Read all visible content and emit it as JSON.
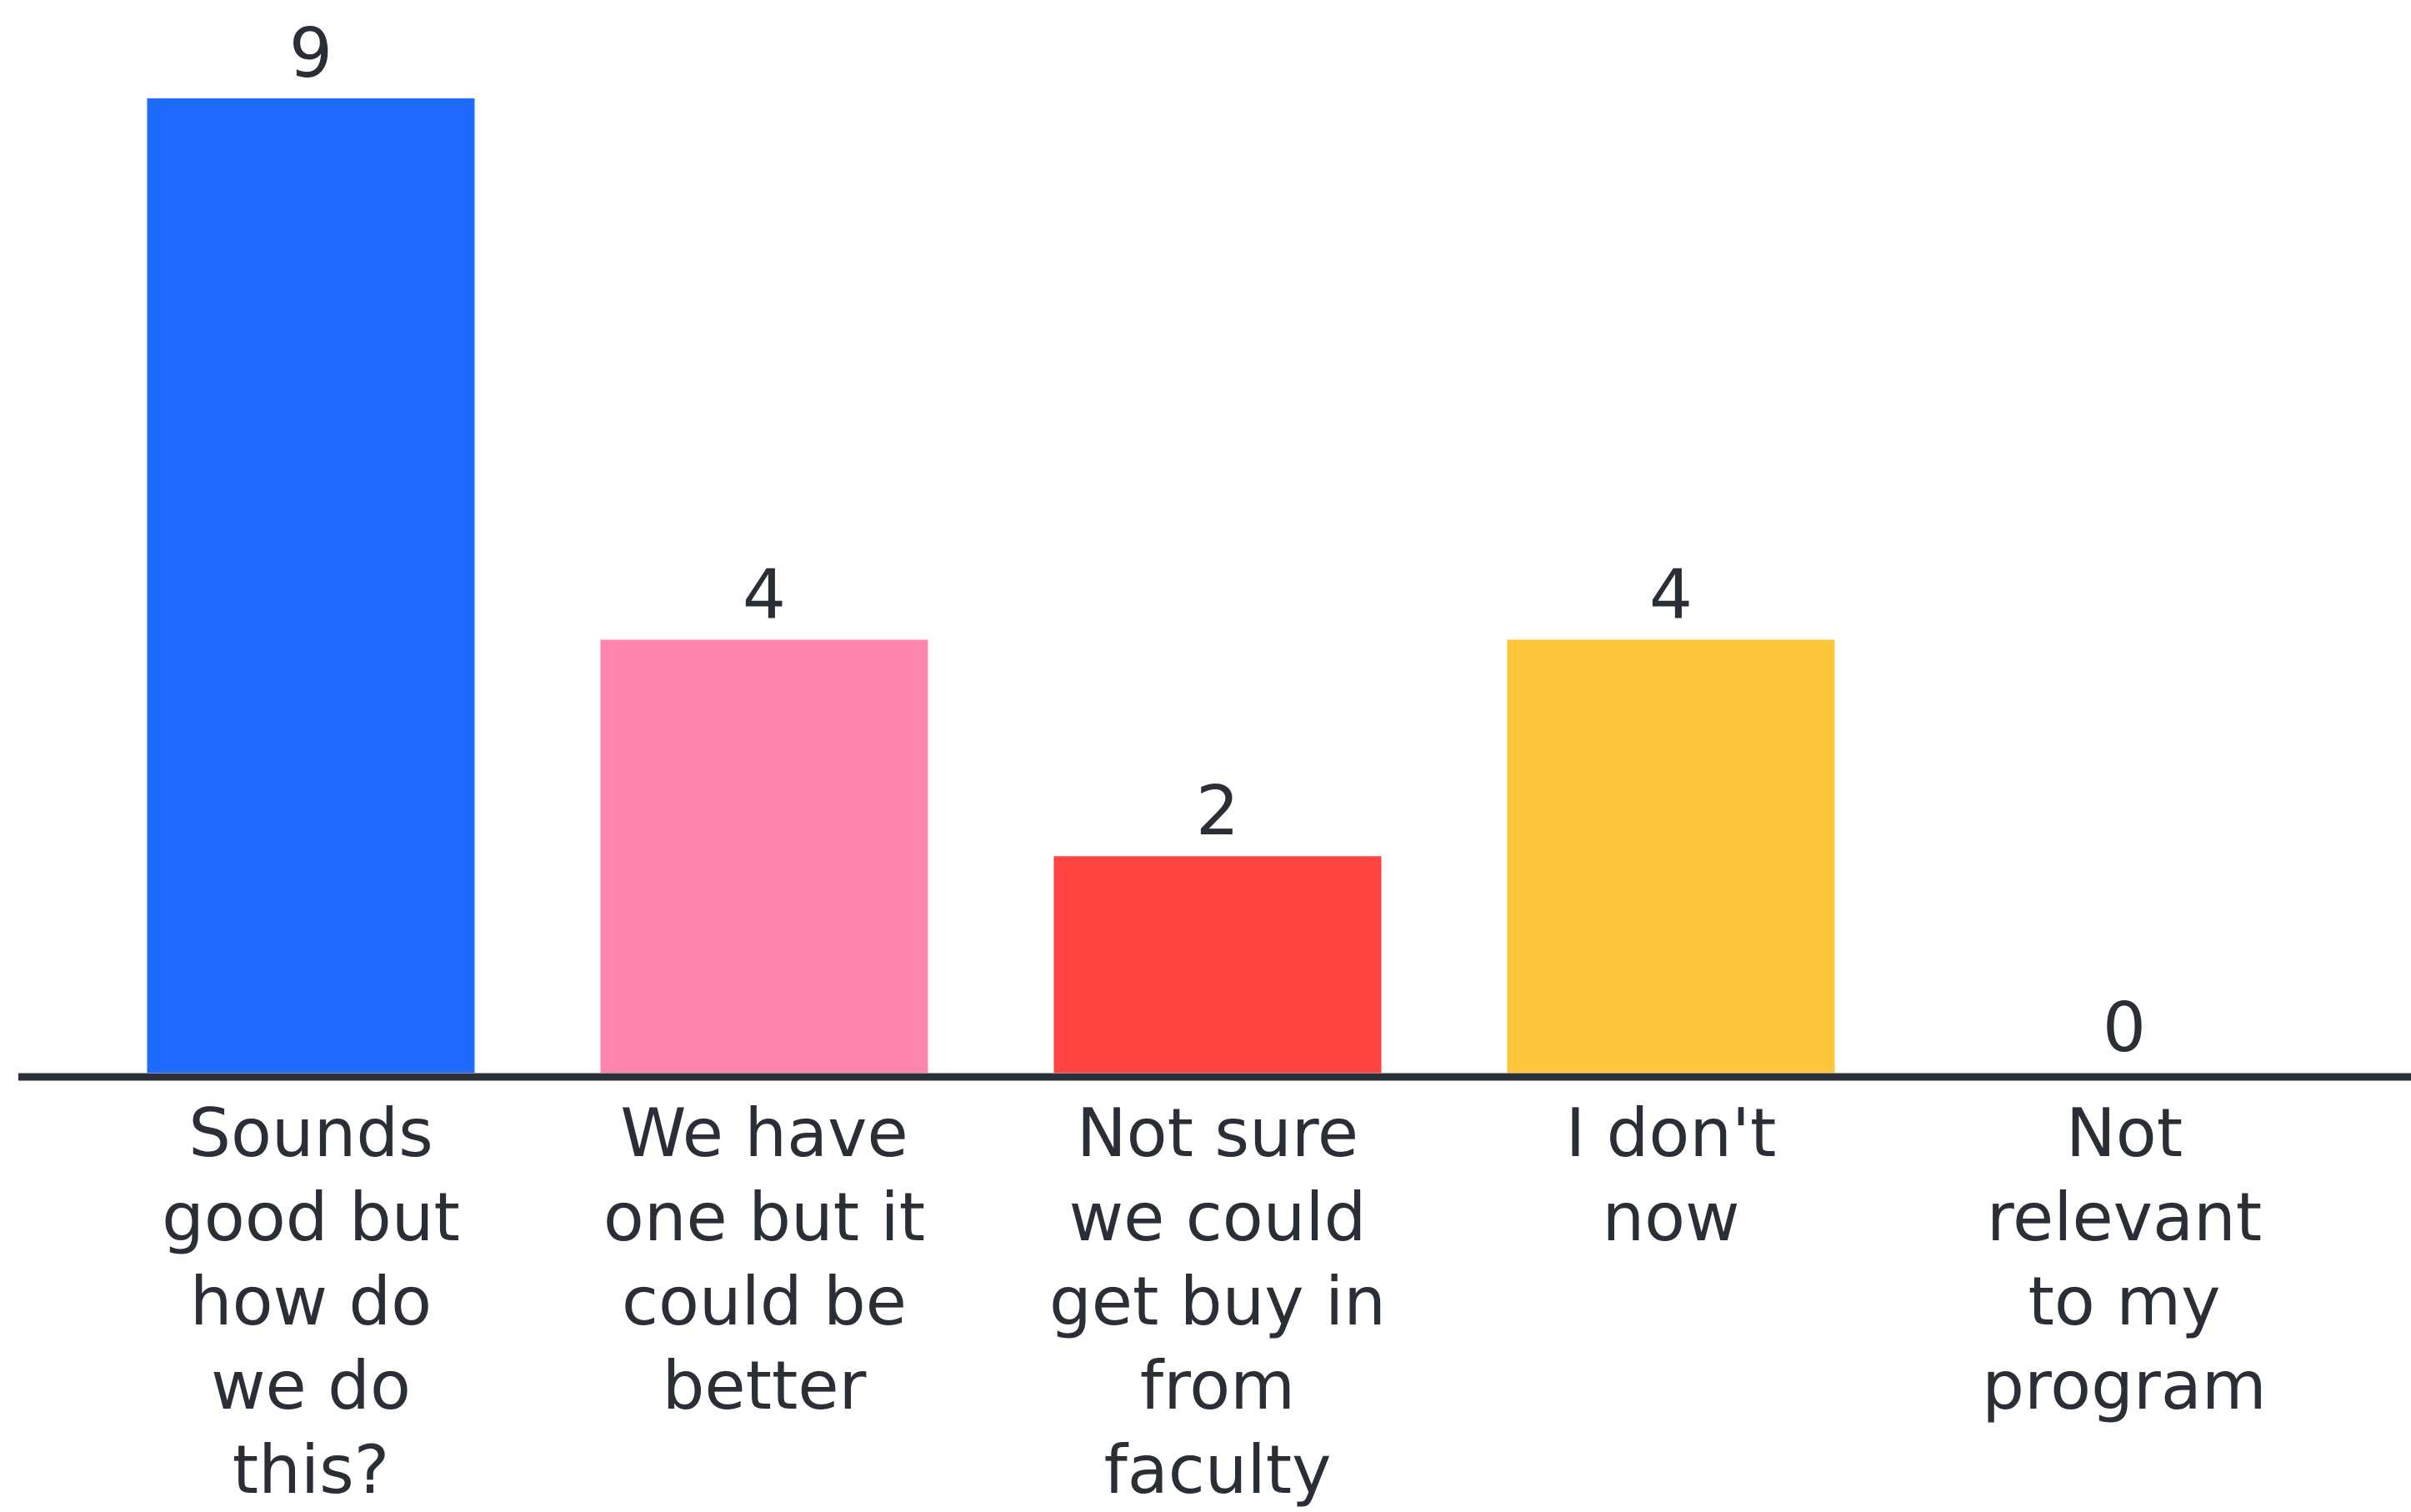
{
  "chart_data": {
    "type": "bar",
    "title": "",
    "xlabel": "",
    "ylabel": "",
    "ylim": [
      0,
      9
    ],
    "grid": false,
    "legend": "none",
    "categories": [
      [
        "Sounds",
        "good but",
        "how do",
        "we do",
        "this?"
      ],
      [
        "We have",
        "one but it",
        "could be",
        "better"
      ],
      [
        "Not sure",
        "we could",
        "get buy in",
        "from",
        "faculty"
      ],
      [
        "I don't",
        "now"
      ],
      [
        "Not",
        "relevant",
        "to my",
        "program"
      ]
    ],
    "values": [
      9,
      4,
      2,
      4,
      0
    ],
    "value_labels": [
      "9",
      "4",
      "2",
      "4",
      "0"
    ],
    "colors": [
      "#1f6bff",
      "#ff85ad",
      "#ff4340",
      "#fec63a",
      "#cccccc"
    ],
    "axis_color": "#2b2f37",
    "text_color": "#2a2e36"
  }
}
